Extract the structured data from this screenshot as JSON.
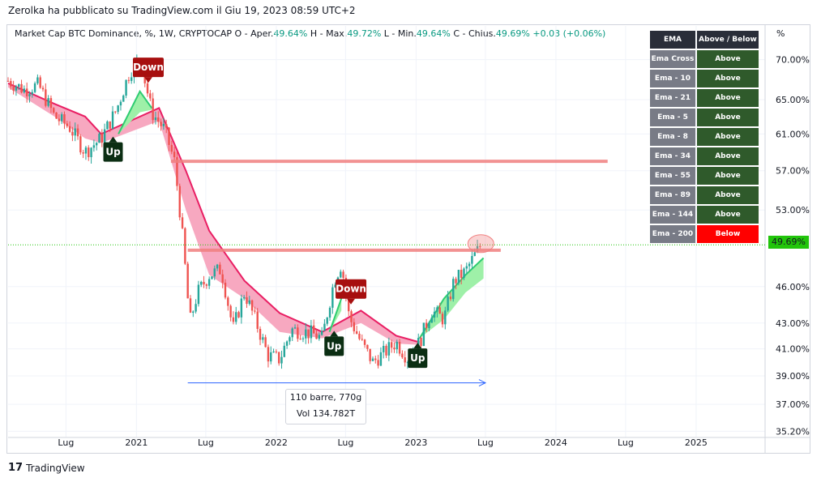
{
  "header": {
    "published": "Zerolka ha pubblicato su TradingView.com il Giu 19, 2023 08:59 UTC+2"
  },
  "legend": {
    "symbol": "Market Cap BTC Dominance, %, 1W, CRYPTOCAP",
    "o_label": "O - Aper.",
    "o_value": "49.64%",
    "h_label": "H - Max.",
    "h_value": "49.72%",
    "l_label": "L - Min.",
    "l_value": "49.64%",
    "c_label": "C - Chius.",
    "c_value": "49.69%",
    "change": "+0.03 (+0.06%)"
  },
  "ema_table": {
    "header_name": "EMA",
    "header_status": "Above / Below",
    "rows": [
      {
        "name": "Ema Cross",
        "status": "Above",
        "color": "#2f5a2b"
      },
      {
        "name": "Ema - 10",
        "status": "Above",
        "color": "#2f5a2b"
      },
      {
        "name": "Ema - 21",
        "status": "Above",
        "color": "#2f5a2b"
      },
      {
        "name": "Ema - 5",
        "status": "Above",
        "color": "#2f5a2b"
      },
      {
        "name": "Ema - 8",
        "status": "Above",
        "color": "#2f5a2b"
      },
      {
        "name": "Ema - 34",
        "status": "Above",
        "color": "#2f5a2b"
      },
      {
        "name": "Ema - 55",
        "status": "Above",
        "color": "#2f5a2b"
      },
      {
        "name": "Ema - 89",
        "status": "Above",
        "color": "#2f5a2b"
      },
      {
        "name": "Ema - 144",
        "status": "Above",
        "color": "#2f5a2b"
      },
      {
        "name": "Ema - 200",
        "status": "Below",
        "color": "#ff0000"
      }
    ]
  },
  "price_axis": {
    "unit": "%",
    "current_price": "49.69%"
  },
  "measure": {
    "line1": "110 barre, 770g",
    "line2": "Vol 134.782T"
  },
  "branding": {
    "logo_mark": "17",
    "name": "TradingView"
  },
  "colors": {
    "up_candle": "#26a69a",
    "down_candle": "#ef5350",
    "ribbon_down": "#f7a8c0",
    "ribbon_down_line": "#e91e63",
    "ribbon_up": "#9ef0a8",
    "resistance": "#f08080",
    "label_up_bg": "#0b2e13",
    "label_down_bg": "#a70f0f",
    "current_price": "#22c50b"
  },
  "chart_data": {
    "type": "candlestick",
    "y_scale": "log",
    "ylim": [
      34.8,
      74.5
    ],
    "y_ticks": [
      "70.00%",
      "65.00%",
      "61.00%",
      "57.00%",
      "53.00%",
      "49.69%",
      "46.00%",
      "43.00%",
      "41.00%",
      "39.00%",
      "37.00%",
      "35.20%"
    ],
    "y_tick_values": [
      70,
      65,
      61,
      57,
      53,
      49.69,
      46,
      43,
      41,
      39,
      37,
      35.2
    ],
    "x_ticks": [
      "Lug",
      "2021",
      "Lug",
      "2022",
      "Lug",
      "2023",
      "Lug",
      "2024",
      "Lug",
      "2025"
    ],
    "x_tick_values": [
      "2020-07-01",
      "2021-01-01",
      "2021-07-01",
      "2022-01-01",
      "2022-07-01",
      "2023-01-01",
      "2023-07-01",
      "2024-01-01",
      "2024-07-01",
      "2025-01-01"
    ],
    "x_range": [
      "2020-02-01",
      "2025-06-30"
    ],
    "close_path": [
      {
        "x": "2020-02-01",
        "y": 67.3
      },
      {
        "x": "2020-03-15",
        "y": 66.2
      },
      {
        "x": "2020-04-20",
        "y": 66.8
      },
      {
        "x": "2020-06-01",
        "y": 63.0
      },
      {
        "x": "2020-07-10",
        "y": 61.8
      },
      {
        "x": "2020-08-20",
        "y": 59.0
      },
      {
        "x": "2020-10-01",
        "y": 60.5
      },
      {
        "x": "2020-11-10",
        "y": 63.8
      },
      {
        "x": "2020-12-15",
        "y": 68.5
      },
      {
        "x": "2021-01-10",
        "y": 70.2
      },
      {
        "x": "2021-02-10",
        "y": 63.5
      },
      {
        "x": "2021-03-15",
        "y": 61.5
      },
      {
        "x": "2021-04-10",
        "y": 58.0
      },
      {
        "x": "2021-05-01",
        "y": 50.5
      },
      {
        "x": "2021-05-20",
        "y": 43.0
      },
      {
        "x": "2021-06-10",
        "y": 45.5
      },
      {
        "x": "2021-07-10",
        "y": 47.0
      },
      {
        "x": "2021-08-10",
        "y": 47.5
      },
      {
        "x": "2021-09-10",
        "y": 42.5
      },
      {
        "x": "2021-10-10",
        "y": 45.5
      },
      {
        "x": "2021-11-10",
        "y": 43.0
      },
      {
        "x": "2021-12-10",
        "y": 40.5
      },
      {
        "x": "2022-01-10",
        "y": 40.2
      },
      {
        "x": "2022-02-10",
        "y": 42.5
      },
      {
        "x": "2022-04-01",
        "y": 42.2
      },
      {
        "x": "2022-05-01",
        "y": 41.8
      },
      {
        "x": "2022-06-01",
        "y": 46.5
      },
      {
        "x": "2022-06-20",
        "y": 48.0
      },
      {
        "x": "2022-07-10",
        "y": 43.5
      },
      {
        "x": "2022-08-10",
        "y": 41.5
      },
      {
        "x": "2022-09-10",
        "y": 40.0
      },
      {
        "x": "2022-10-10",
        "y": 40.7
      },
      {
        "x": "2022-11-10",
        "y": 41.5
      },
      {
        "x": "2022-12-10",
        "y": 40.3
      },
      {
        "x": "2023-01-10",
        "y": 41.5
      },
      {
        "x": "2023-02-10",
        "y": 44.0
      },
      {
        "x": "2023-03-15",
        "y": 43.3
      },
      {
        "x": "2023-04-10",
        "y": 46.5
      },
      {
        "x": "2023-05-10",
        "y": 47.3
      },
      {
        "x": "2023-06-19",
        "y": 49.69
      }
    ],
    "ema_ribbon_down": [
      {
        "x": "2020-02-01",
        "y1": 67.0,
        "y2": 66.5
      },
      {
        "x": "2020-06-01",
        "y1": 64.5,
        "y2": 63.0
      },
      {
        "x": "2020-08-20",
        "y1": 63.0,
        "y2": 60.5
      },
      {
        "x": "2020-10-01",
        "y1": 61.0,
        "y2": 60.0
      },
      {
        "x": "2021-03-01",
        "y1": 64.0,
        "y2": 62.5
      },
      {
        "x": "2021-05-10",
        "y1": 57.0,
        "y2": 53.0
      },
      {
        "x": "2021-07-10",
        "y1": 51.0,
        "y2": 47.0
      },
      {
        "x": "2021-10-10",
        "y1": 46.5,
        "y2": 45.0
      },
      {
        "x": "2022-01-10",
        "y1": 43.8,
        "y2": 42.3
      },
      {
        "x": "2022-05-01",
        "y1": 42.3,
        "y2": 41.8
      },
      {
        "x": "2022-08-10",
        "y1": 44.0,
        "y2": 43.0
      },
      {
        "x": "2022-11-10",
        "y1": 42.0,
        "y2": 41.4
      },
      {
        "x": "2023-01-10",
        "y1": 41.5,
        "y2": 41.3
      }
    ],
    "ema_ribbon_up": [
      {
        "x": "2020-11-15",
        "y1": 61.0,
        "y2": 61.0
      },
      {
        "x": "2021-01-10",
        "y1": 66.0,
        "y2": 63.5
      },
      {
        "x": "2021-02-10",
        "y1": 64.0,
        "y2": 63.8
      },
      {
        "x": "2022-05-20",
        "y1": 42.3,
        "y2": 42.3
      },
      {
        "x": "2022-06-20",
        "y1": 45.0,
        "y2": 44.0
      },
      {
        "x": "2023-01-10",
        "y1": 41.8,
        "y2": 41.8
      },
      {
        "x": "2023-03-15",
        "y1": 45.0,
        "y2": 43.3
      },
      {
        "x": "2023-05-10",
        "y1": 47.0,
        "y2": 45.5
      },
      {
        "x": "2023-06-26",
        "y1": 48.5,
        "y2": 46.7
      }
    ],
    "resistance_lines": [
      {
        "from": "2021-04-01",
        "to": "2024-05-15",
        "y": 58.0
      },
      {
        "from": "2021-05-15",
        "to": "2023-08-10",
        "y": 49.2
      }
    ],
    "signals": [
      {
        "label": "Down",
        "x": "2021-02-01",
        "y": 69.0,
        "type": "down"
      },
      {
        "label": "Up",
        "x": "2020-11-01",
        "y": 59.0,
        "type": "up"
      },
      {
        "label": "Down",
        "x": "2022-07-15",
        "y": 45.8,
        "type": "down"
      },
      {
        "label": "Up",
        "x": "2022-06-01",
        "y": 41.2,
        "type": "up"
      },
      {
        "label": "Up",
        "x": "2023-01-05",
        "y": 40.3,
        "type": "up"
      }
    ],
    "measure_arrow": {
      "from": "2021-05-15",
      "to": "2023-07-01",
      "y": 38.5
    },
    "highlight": {
      "x": "2023-06-19",
      "y": 49.8
    }
  }
}
